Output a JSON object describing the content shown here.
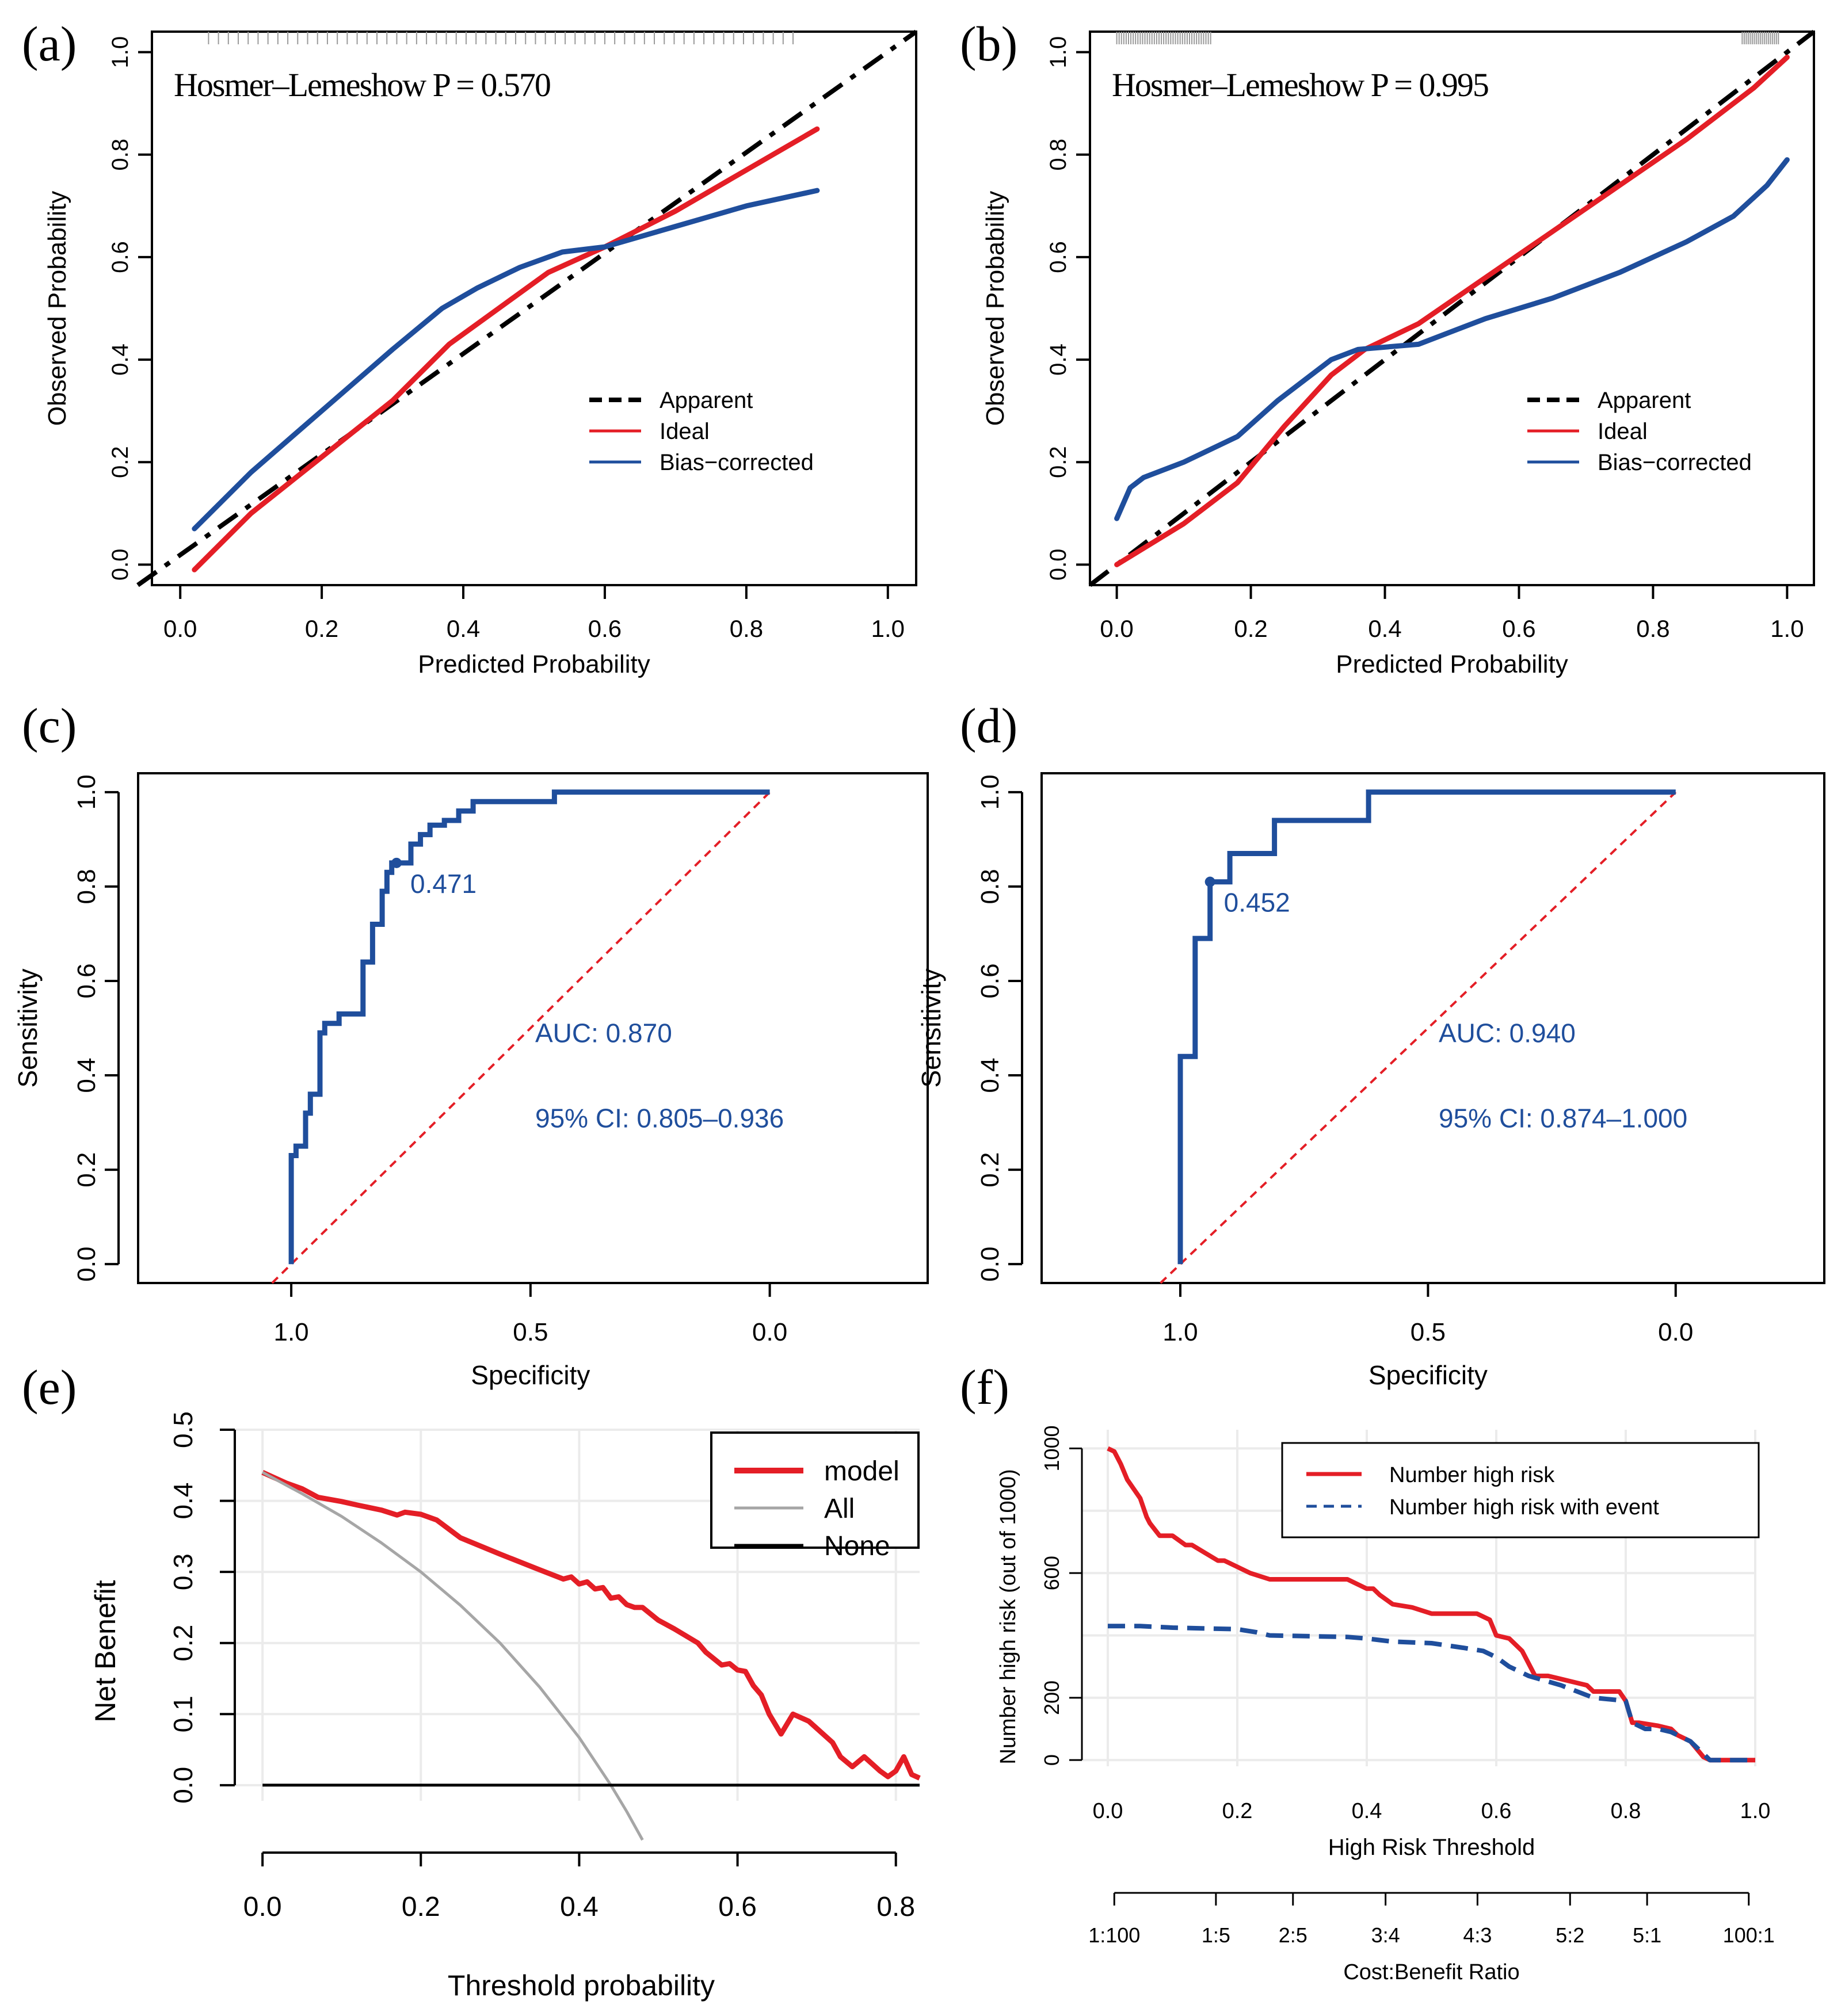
{
  "figure": {
    "panel_labels": [
      "(a)",
      "(b)",
      "(c)",
      "(d)",
      "(e)",
      "(f)"
    ]
  },
  "colors": {
    "red": "#e41e26",
    "blue": "#1f4e9c",
    "black": "#000000",
    "grey": "#a6a6a6",
    "grid": "#ebebeb",
    "dashed_red": "#e41e26"
  },
  "chart_data": [
    {
      "id": "a",
      "type": "line",
      "title": "Hosmer–Lemeshow P = 0.570",
      "xlabel": "Predicted Probability",
      "ylabel": "Observed Probability",
      "xlim": [
        0,
        1
      ],
      "ylim": [
        0,
        1
      ],
      "xticks": [
        "0.0",
        "0.2",
        "0.4",
        "0.6",
        "0.8",
        "1.0"
      ],
      "yticks": [
        "0.0",
        "0.2",
        "0.4",
        "0.6",
        "0.8",
        "1.0"
      ],
      "legend": [
        "Apparent",
        "Ideal",
        "Bias−corrected"
      ],
      "series": [
        {
          "name": "Apparent",
          "style": "dashed-black",
          "x": [
            -0.06,
            1.04
          ],
          "y": [
            -0.04,
            1.04
          ]
        },
        {
          "name": "Ideal",
          "style": "red",
          "x": [
            0.02,
            0.1,
            0.2,
            0.3,
            0.38,
            0.45,
            0.52,
            0.6,
            0.7,
            0.8,
            0.9
          ],
          "y": [
            -0.01,
            0.1,
            0.21,
            0.32,
            0.43,
            0.5,
            0.57,
            0.62,
            0.69,
            0.77,
            0.85
          ]
        },
        {
          "name": "Bias−corrected",
          "style": "blue",
          "x": [
            0.02,
            0.1,
            0.2,
            0.3,
            0.37,
            0.42,
            0.48,
            0.54,
            0.6,
            0.7,
            0.8,
            0.9
          ],
          "y": [
            0.07,
            0.18,
            0.3,
            0.42,
            0.5,
            0.54,
            0.58,
            0.61,
            0.62,
            0.66,
            0.7,
            0.73
          ]
        }
      ]
    },
    {
      "id": "b",
      "type": "line",
      "title": "Hosmer–Lemeshow P = 0.995",
      "xlabel": "Predicted Probability",
      "ylabel": "Observed Probability",
      "xlim": [
        0,
        1
      ],
      "ylim": [
        0,
        1
      ],
      "xticks": [
        "0.0",
        "0.2",
        "0.4",
        "0.6",
        "0.8",
        "1.0"
      ],
      "yticks": [
        "0.0",
        "0.2",
        "0.4",
        "0.6",
        "0.8",
        "1.0"
      ],
      "legend": [
        "Apparent",
        "Ideal",
        "Bias−corrected"
      ],
      "series": [
        {
          "name": "Apparent",
          "style": "dashed-black",
          "x": [
            -0.04,
            1.04
          ],
          "y": [
            -0.04,
            1.04
          ]
        },
        {
          "name": "Ideal",
          "style": "red",
          "x": [
            0.0,
            0.1,
            0.18,
            0.25,
            0.32,
            0.37,
            0.45,
            0.55,
            0.65,
            0.75,
            0.85,
            0.95,
            1.0
          ],
          "y": [
            0.0,
            0.08,
            0.16,
            0.27,
            0.37,
            0.42,
            0.47,
            0.56,
            0.65,
            0.74,
            0.83,
            0.93,
            0.99
          ]
        },
        {
          "name": "Bias−corrected",
          "style": "blue",
          "x": [
            0.0,
            0.02,
            0.04,
            0.1,
            0.18,
            0.24,
            0.32,
            0.36,
            0.45,
            0.55,
            0.65,
            0.75,
            0.85,
            0.92,
            0.97,
            1.0
          ],
          "y": [
            0.09,
            0.15,
            0.17,
            0.2,
            0.25,
            0.32,
            0.4,
            0.42,
            0.43,
            0.48,
            0.52,
            0.57,
            0.63,
            0.68,
            0.74,
            0.79
          ]
        }
      ]
    },
    {
      "id": "c",
      "type": "line",
      "xlabel": "Specificity",
      "ylabel": "Sensitivity",
      "xlim": [
        1.0,
        0.0
      ],
      "ylim": [
        0,
        1
      ],
      "xticks": [
        "1.0",
        "0.5",
        "0.0"
      ],
      "yticks": [
        "0.0",
        "0.2",
        "0.4",
        "0.6",
        "0.8",
        "1.0"
      ],
      "annotations": {
        "auc": "AUC: 0.870",
        "ci": "95% CI: 0.805–0.936",
        "threshold": "0.471"
      },
      "best_point": {
        "specificity": 0.78,
        "sensitivity": 0.85
      },
      "diagonal": {
        "x": [
          1.04,
          0.0
        ],
        "y": [
          -0.04,
          1.0
        ]
      },
      "series": [
        {
          "name": "ROC",
          "style": "blue",
          "x": [
            1.0,
            1.0,
            0.99,
            0.99,
            0.97,
            0.97,
            0.96,
            0.96,
            0.94,
            0.94,
            0.93,
            0.93,
            0.9,
            0.9,
            0.85,
            0.85,
            0.83,
            0.83,
            0.81,
            0.81,
            0.8,
            0.8,
            0.79,
            0.79,
            0.78,
            0.78,
            0.75,
            0.75,
            0.73,
            0.73,
            0.71,
            0.71,
            0.68,
            0.68,
            0.65,
            0.65,
            0.62,
            0.62,
            0.45,
            0.45,
            0.0
          ],
          "y": [
            0.0,
            0.23,
            0.23,
            0.25,
            0.25,
            0.32,
            0.32,
            0.36,
            0.36,
            0.49,
            0.49,
            0.51,
            0.51,
            0.53,
            0.53,
            0.64,
            0.64,
            0.72,
            0.72,
            0.79,
            0.79,
            0.83,
            0.83,
            0.85,
            0.85,
            0.85,
            0.85,
            0.89,
            0.89,
            0.91,
            0.91,
            0.93,
            0.93,
            0.94,
            0.94,
            0.96,
            0.96,
            0.98,
            0.98,
            1.0,
            1.0
          ]
        }
      ]
    },
    {
      "id": "d",
      "type": "line",
      "xlabel": "Specificity",
      "ylabel": "Sensitivity",
      "xlim": [
        1.0,
        0.0
      ],
      "ylim": [
        0,
        1
      ],
      "xticks": [
        "1.0",
        "0.5",
        "0.0"
      ],
      "yticks": [
        "0.0",
        "0.2",
        "0.4",
        "0.6",
        "0.8",
        "1.0"
      ],
      "annotations": {
        "auc": "AUC: 0.940",
        "ci": "95% CI: 0.874–1.000",
        "threshold": "0.452"
      },
      "best_point": {
        "specificity": 0.94,
        "sensitivity": 0.81
      },
      "diagonal": {
        "x": [
          1.04,
          0.0
        ],
        "y": [
          -0.04,
          1.0
        ]
      },
      "series": [
        {
          "name": "ROC",
          "style": "blue",
          "x": [
            1.0,
            1.0,
            0.97,
            0.97,
            0.94,
            0.94,
            0.9,
            0.9,
            0.81,
            0.81,
            0.62,
            0.62,
            0.0
          ],
          "y": [
            0.0,
            0.44,
            0.44,
            0.69,
            0.69,
            0.81,
            0.81,
            0.87,
            0.87,
            0.94,
            0.94,
            1.0,
            1.0
          ]
        }
      ]
    },
    {
      "id": "e",
      "type": "line",
      "xlabel": "Threshold probability",
      "ylabel": "Net Benefit",
      "xlim": [
        0,
        0.83
      ],
      "ylim": [
        0,
        0.5
      ],
      "xticks": [
        "0.0",
        "0.2",
        "0.4",
        "0.6",
        "0.8"
      ],
      "yticks": [
        "0.0",
        "0.1",
        "0.2",
        "0.3",
        "0.4",
        "0.5"
      ],
      "legend": [
        "model",
        "All",
        "None"
      ],
      "series": [
        {
          "name": "model",
          "style": "red",
          "x": [
            0.0,
            0.03,
            0.05,
            0.07,
            0.1,
            0.12,
            0.15,
            0.17,
            0.18,
            0.2,
            0.22,
            0.25,
            0.3,
            0.35,
            0.38,
            0.39,
            0.4,
            0.41,
            0.42,
            0.43,
            0.44,
            0.45,
            0.46,
            0.47,
            0.48,
            0.5,
            0.52,
            0.55,
            0.56,
            0.58,
            0.59,
            0.6,
            0.61,
            0.62,
            0.63,
            0.64,
            0.655,
            0.67,
            0.69,
            0.7,
            0.72,
            0.73,
            0.745,
            0.76,
            0.78,
            0.79,
            0.8,
            0.81,
            0.82,
            0.83
          ],
          "y": [
            0.44,
            0.425,
            0.417,
            0.405,
            0.399,
            0.394,
            0.387,
            0.38,
            0.384,
            0.381,
            0.373,
            0.348,
            0.325,
            0.303,
            0.29,
            0.293,
            0.283,
            0.286,
            0.276,
            0.278,
            0.263,
            0.265,
            0.254,
            0.25,
            0.25,
            0.232,
            0.22,
            0.2,
            0.187,
            0.169,
            0.171,
            0.162,
            0.16,
            0.14,
            0.127,
            0.1,
            0.072,
            0.1,
            0.09,
            0.08,
            0.06,
            0.04,
            0.026,
            0.04,
            0.02,
            0.012,
            0.02,
            0.04,
            0.015,
            0.01
          ]
        },
        {
          "name": "All",
          "style": "grey",
          "x": [
            0.0,
            0.05,
            0.1,
            0.15,
            0.2,
            0.25,
            0.3,
            0.35,
            0.4,
            0.44,
            0.46,
            0.48
          ],
          "y": [
            0.44,
            0.41,
            0.378,
            0.341,
            0.3,
            0.253,
            0.2,
            0.138,
            0.067,
            0.0,
            -0.037,
            -0.077
          ]
        },
        {
          "name": "None",
          "style": "black",
          "x": [
            0.0,
            0.83
          ],
          "y": [
            0.0,
            0.0
          ]
        }
      ]
    },
    {
      "id": "f",
      "type": "line",
      "xlabel": "High Risk Threshold",
      "ylabel": "Number high risk (out of 1000)",
      "xlim": [
        0,
        1
      ],
      "ylim": [
        0,
        1000
      ],
      "xticks": [
        "0.0",
        "0.2",
        "0.4",
        "0.6",
        "0.8",
        "1.0"
      ],
      "yticks": [
        "0",
        "200",
        "600",
        "1000"
      ],
      "cost_benefit_label": "Cost:Benefit Ratio",
      "cost_benefit_ticks": [
        "1:100",
        "1:5",
        "2:5",
        "3:4",
        "4:3",
        "5:2",
        "5:1",
        "100:1"
      ],
      "legend": [
        "Number high risk",
        "Number high risk with event"
      ],
      "series": [
        {
          "name": "Number high risk",
          "style": "red",
          "x": [
            0.0,
            0.01,
            0.02,
            0.03,
            0.04,
            0.05,
            0.06,
            0.065,
            0.08,
            0.1,
            0.12,
            0.13,
            0.17,
            0.18,
            0.2,
            0.22,
            0.25,
            0.37,
            0.4,
            0.41,
            0.42,
            0.44,
            0.47,
            0.5,
            0.57,
            0.59,
            0.6,
            0.62,
            0.63,
            0.64,
            0.66,
            0.67,
            0.68,
            0.7,
            0.72,
            0.74,
            0.75,
            0.79,
            0.8,
            0.81,
            0.82,
            0.85,
            0.87,
            0.88,
            0.9,
            0.92,
            0.93,
            1.0
          ],
          "y": [
            1000,
            990,
            950,
            900,
            870,
            840,
            780,
            760,
            720,
            720,
            690,
            690,
            640,
            640,
            620,
            600,
            580,
            580,
            550,
            550,
            530,
            500,
            490,
            470,
            470,
            450,
            400,
            390,
            370,
            350,
            270,
            270,
            270,
            260,
            250,
            240,
            220,
            220,
            190,
            120,
            120,
            110,
            100,
            80,
            60,
            10,
            0,
            0
          ]
        },
        {
          "name": "Number high risk with event",
          "style": "dashed-blue",
          "x": [
            0.0,
            0.05,
            0.1,
            0.2,
            0.23,
            0.25,
            0.37,
            0.4,
            0.42,
            0.44,
            0.5,
            0.55,
            0.58,
            0.6,
            0.62,
            0.65,
            0.7,
            0.75,
            0.8,
            0.81,
            0.83,
            0.85,
            0.87,
            0.9,
            0.92,
            0.93,
            1.0
          ],
          "y": [
            430,
            430,
            425,
            420,
            410,
            400,
            395,
            390,
            385,
            380,
            375,
            360,
            350,
            330,
            300,
            270,
            240,
            200,
            190,
            120,
            100,
            100,
            90,
            60,
            20,
            0,
            0
          ]
        }
      ]
    }
  ]
}
